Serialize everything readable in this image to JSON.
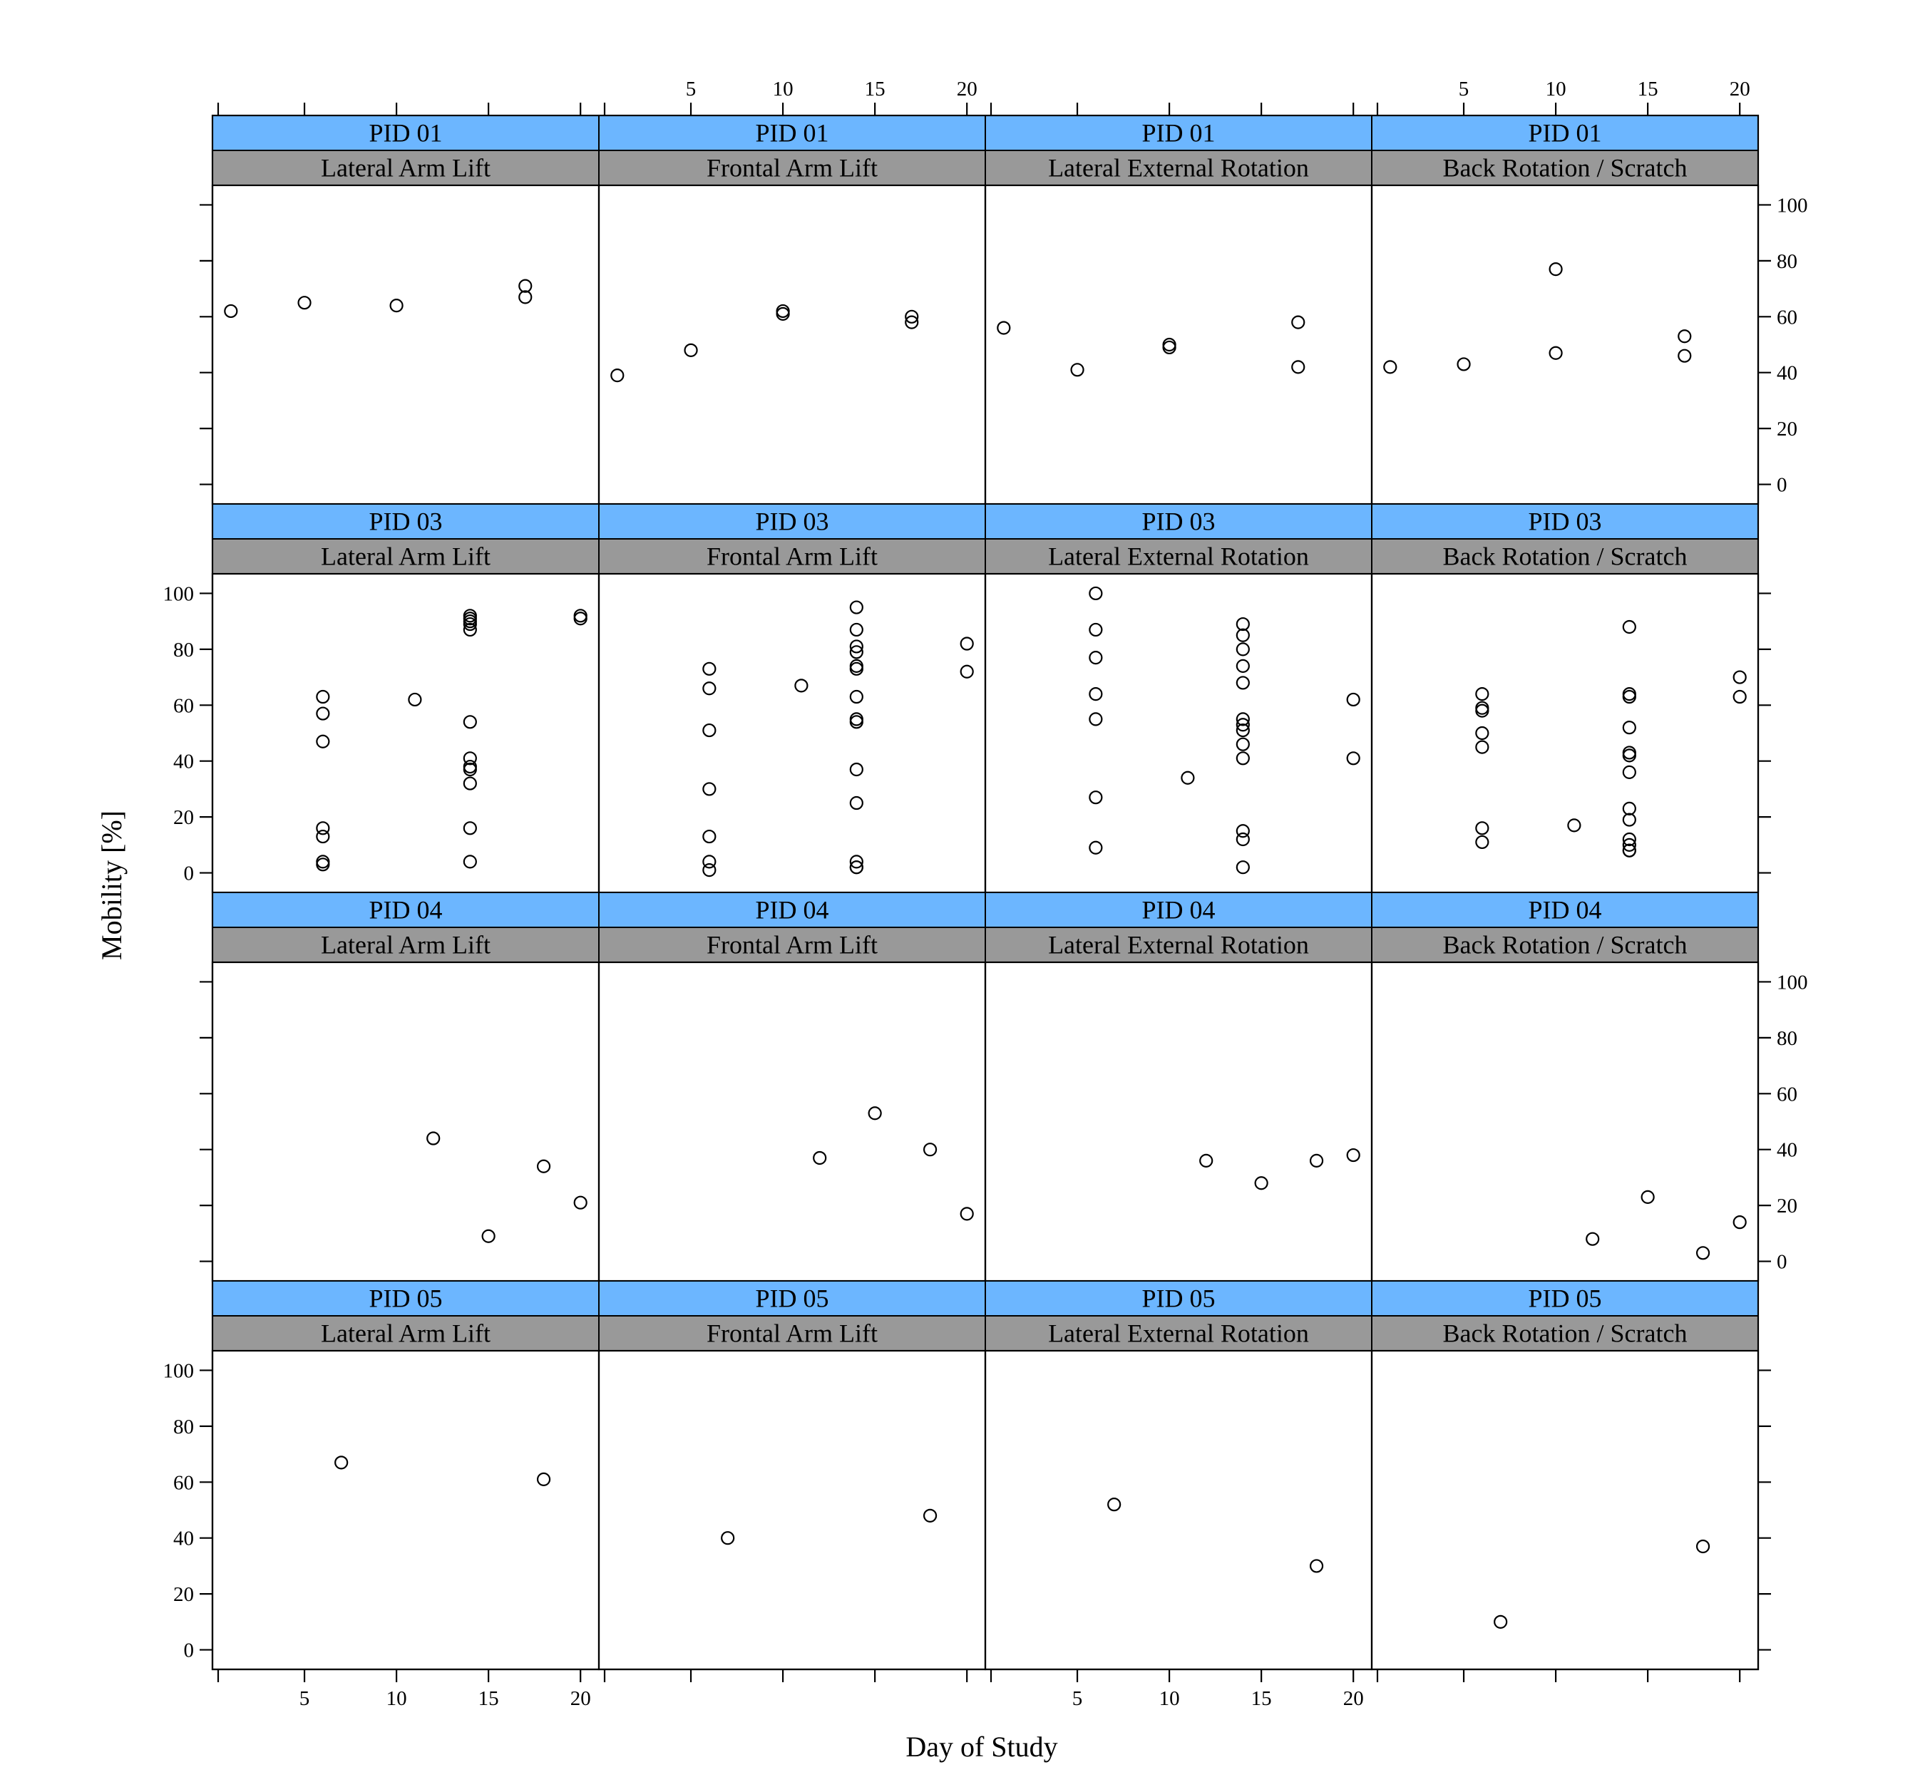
{
  "chart_data": {
    "type": "scatter",
    "xlabel": "Day of Study",
    "ylabel": "Mobility [%]",
    "x_ticks": [
      5,
      10,
      15,
      20
    ],
    "y_ticks": [
      0,
      20,
      40,
      60,
      80,
      100
    ],
    "xlim": [
      0,
      21
    ],
    "ylim": [
      -7,
      107
    ],
    "grid": false,
    "strip_colors": {
      "participant": "#6cb6ff",
      "exercise": "#999999"
    },
    "exercises": [
      "Lateral Arm Lift",
      "Frontal Arm Lift",
      "Lateral External Rotation",
      "Back Rotation / Scratch"
    ],
    "participants": [
      "PID 01",
      "PID 03",
      "PID 04",
      "PID 05"
    ],
    "panels": [
      {
        "participant": "PID 01",
        "exercise": "Lateral Arm Lift",
        "x": [
          1,
          5,
          10,
          17,
          17
        ],
        "y": [
          62,
          65,
          64,
          71,
          67
        ]
      },
      {
        "participant": "PID 01",
        "exercise": "Frontal Arm Lift",
        "x": [
          1,
          5,
          10,
          10,
          17,
          17
        ],
        "y": [
          39,
          48,
          62,
          61,
          60,
          58
        ]
      },
      {
        "participant": "PID 01",
        "exercise": "Lateral External Rotation",
        "x": [
          1,
          5,
          10,
          10,
          17,
          17
        ],
        "y": [
          56,
          41,
          50,
          49,
          58,
          42
        ]
      },
      {
        "participant": "PID 01",
        "exercise": "Back Rotation / Scratch",
        "x": [
          1,
          5,
          10,
          10,
          17,
          17
        ],
        "y": [
          42,
          43,
          77,
          47,
          53,
          46
        ]
      },
      {
        "participant": "PID 03",
        "exercise": "Lateral Arm Lift",
        "x": [
          6,
          6,
          6,
          6,
          6,
          6,
          6,
          11,
          14,
          14,
          14,
          14,
          14,
          14,
          14,
          14,
          14,
          14,
          14,
          14,
          20,
          20
        ],
        "y": [
          63,
          57,
          47,
          16,
          13,
          4,
          3,
          62,
          92,
          91,
          90,
          89,
          87,
          54,
          41,
          38,
          37,
          32,
          16,
          4,
          92,
          91
        ]
      },
      {
        "participant": "PID 03",
        "exercise": "Frontal Arm Lift",
        "x": [
          6,
          6,
          6,
          6,
          6,
          6,
          6,
          11,
          14,
          14,
          14,
          14,
          14,
          14,
          14,
          14,
          14,
          14,
          14,
          14,
          14,
          14,
          20,
          20
        ],
        "y": [
          73,
          66,
          51,
          30,
          13,
          4,
          1,
          67,
          95,
          87,
          81,
          79,
          74,
          73,
          63,
          55,
          54,
          37,
          25,
          4,
          2,
          2,
          82,
          72
        ]
      },
      {
        "participant": "PID 03",
        "exercise": "Lateral External Rotation",
        "x": [
          6,
          6,
          6,
          6,
          6,
          6,
          6,
          11,
          14,
          14,
          14,
          14,
          14,
          14,
          14,
          14,
          14,
          14,
          14,
          14,
          14,
          20,
          20
        ],
        "y": [
          100,
          87,
          77,
          64,
          55,
          27,
          9,
          34,
          89,
          85,
          80,
          74,
          68,
          55,
          53,
          51,
          46,
          41,
          15,
          12,
          2,
          62,
          41
        ]
      },
      {
        "participant": "PID 03",
        "exercise": "Back Rotation / Scratch",
        "x": [
          6,
          6,
          6,
          6,
          6,
          6,
          6,
          11,
          14,
          14,
          14,
          14,
          14,
          14,
          14,
          14,
          14,
          14,
          14,
          14,
          14,
          20,
          20
        ],
        "y": [
          64,
          59,
          58,
          50,
          45,
          16,
          11,
          17,
          88,
          64,
          63,
          52,
          43,
          42,
          36,
          23,
          19,
          12,
          10,
          8,
          8,
          70,
          63
        ]
      },
      {
        "participant": "PID 04",
        "exercise": "Lateral Arm Lift",
        "x": [
          12,
          15,
          18,
          20
        ],
        "y": [
          44,
          9,
          34,
          21
        ]
      },
      {
        "participant": "PID 04",
        "exercise": "Frontal Arm Lift",
        "x": [
          12,
          15,
          18,
          20
        ],
        "y": [
          37,
          53,
          40,
          17
        ]
      },
      {
        "participant": "PID 04",
        "exercise": "Lateral External Rotation",
        "x": [
          12,
          15,
          18,
          20
        ],
        "y": [
          36,
          28,
          36,
          38
        ]
      },
      {
        "participant": "PID 04",
        "exercise": "Back Rotation / Scratch",
        "x": [
          12,
          15,
          18,
          20
        ],
        "y": [
          8,
          23,
          3,
          14
        ]
      },
      {
        "participant": "PID 05",
        "exercise": "Lateral Arm Lift",
        "x": [
          7,
          18
        ],
        "y": [
          67,
          61
        ]
      },
      {
        "participant": "PID 05",
        "exercise": "Frontal Arm Lift",
        "x": [
          7,
          18
        ],
        "y": [
          40,
          48
        ]
      },
      {
        "participant": "PID 05",
        "exercise": "Lateral External Rotation",
        "x": [
          7,
          18
        ],
        "y": [
          52,
          30
        ]
      },
      {
        "participant": "PID 05",
        "exercise": "Back Rotation / Scratch",
        "x": [
          7,
          18
        ],
        "y": [
          10,
          37
        ]
      }
    ]
  }
}
